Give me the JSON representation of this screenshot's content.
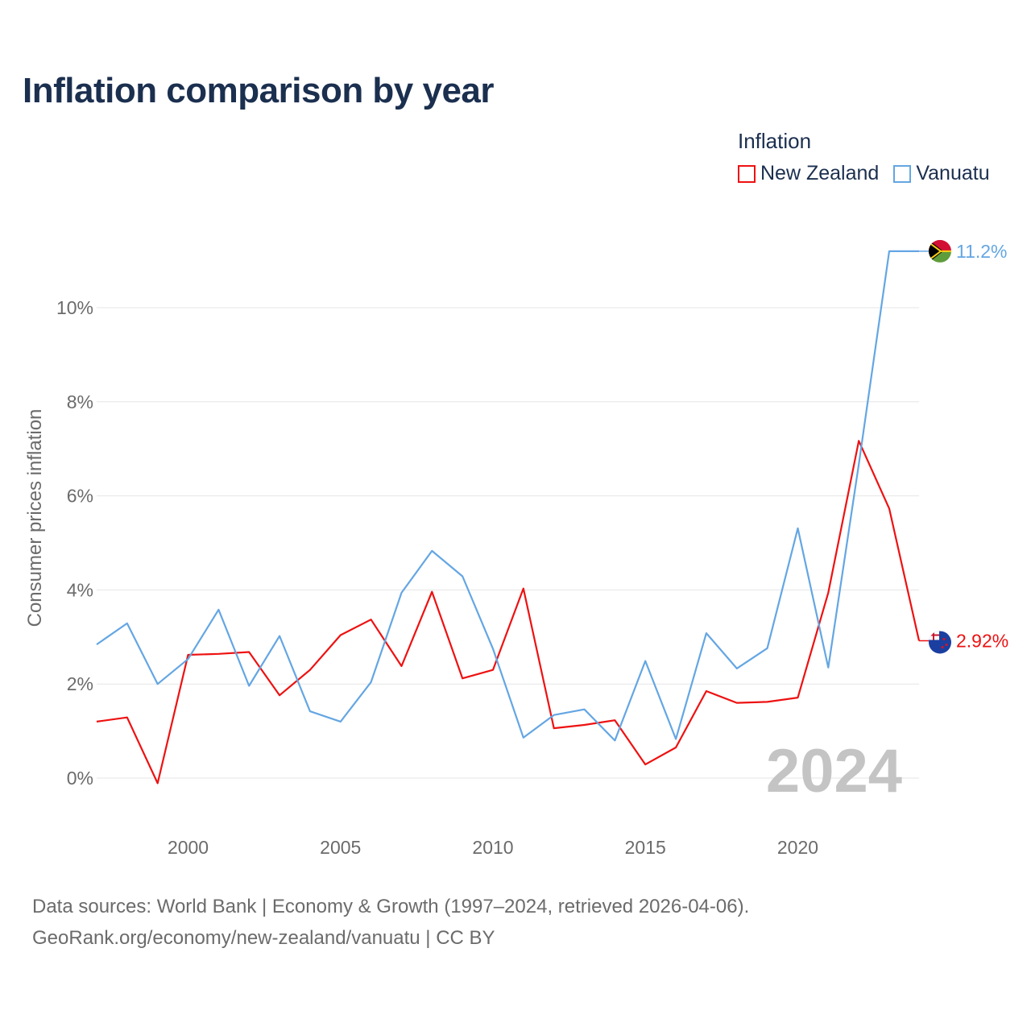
{
  "title": "Inflation comparison by year",
  "legend": {
    "title": "Inflation",
    "items": [
      {
        "label": "New Zealand",
        "color": "#ee1111"
      },
      {
        "label": "Vanuatu",
        "color": "#64a6e3"
      }
    ]
  },
  "source": {
    "line1": "Data sources: World Bank | Economy & Growth (1997–2024, retrieved 2026-04-06).",
    "line2": "GeoRank.org/economy/new-zealand/vanuatu | CC BY"
  },
  "chart_data": {
    "type": "line",
    "title": "Inflation comparison by year",
    "xlabel": "",
    "ylabel": "Consumer prices inflation",
    "year_label": "2024",
    "xlim": [
      1997,
      2024
    ],
    "ylim": [
      -1.2,
      11.5
    ],
    "x_ticks": [
      2000,
      2005,
      2010,
      2015,
      2020
    ],
    "x_tick_labels": [
      "2000",
      "2005",
      "2010",
      "2015",
      "2020"
    ],
    "y_ticks": [
      0,
      2,
      4,
      6,
      8,
      10
    ],
    "y_tick_labels": [
      "0%",
      "2%",
      "4%",
      "6%",
      "8%",
      "10%"
    ],
    "grid": true,
    "legend_position": "top-right",
    "series": [
      {
        "name": "New Zealand",
        "color": "#ee1111",
        "x": [
          1997,
          1998,
          1999,
          2000,
          2001,
          2002,
          2003,
          2004,
          2005,
          2006,
          2007,
          2008,
          2009,
          2010,
          2011,
          2012,
          2013,
          2014,
          2015,
          2016,
          2017,
          2018,
          2019,
          2020,
          2021,
          2022,
          2023,
          2024
        ],
        "values": [
          1.2,
          1.29,
          -0.11,
          2.62,
          2.64,
          2.68,
          1.76,
          2.3,
          3.04,
          3.37,
          2.38,
          3.96,
          2.12,
          2.3,
          4.03,
          1.06,
          1.13,
          1.23,
          0.29,
          0.65,
          1.85,
          1.6,
          1.62,
          1.71,
          3.94,
          7.17,
          5.73,
          2.92
        ],
        "end_label": "2.92%",
        "flag": "new-zealand-flag-icon"
      },
      {
        "name": "Vanuatu",
        "color": "#64a6e3",
        "x": [
          1997,
          1998,
          1999,
          2000,
          2001,
          2002,
          2003,
          2004,
          2005,
          2006,
          2007,
          2008,
          2009,
          2010,
          2011,
          2012,
          2013,
          2014,
          2015,
          2016,
          2017,
          2018,
          2019,
          2020,
          2021,
          2022,
          2023,
          2024
        ],
        "values": [
          2.84,
          3.29,
          2.0,
          2.53,
          3.58,
          1.96,
          3.02,
          1.42,
          1.2,
          2.04,
          3.94,
          4.83,
          4.29,
          2.75,
          0.86,
          1.34,
          1.46,
          0.8,
          2.49,
          0.83,
          3.08,
          2.33,
          2.76,
          5.31,
          2.35,
          6.67,
          11.2,
          11.2
        ],
        "end_label": "11.2%",
        "flag": "vanuatu-flag-icon"
      }
    ]
  }
}
